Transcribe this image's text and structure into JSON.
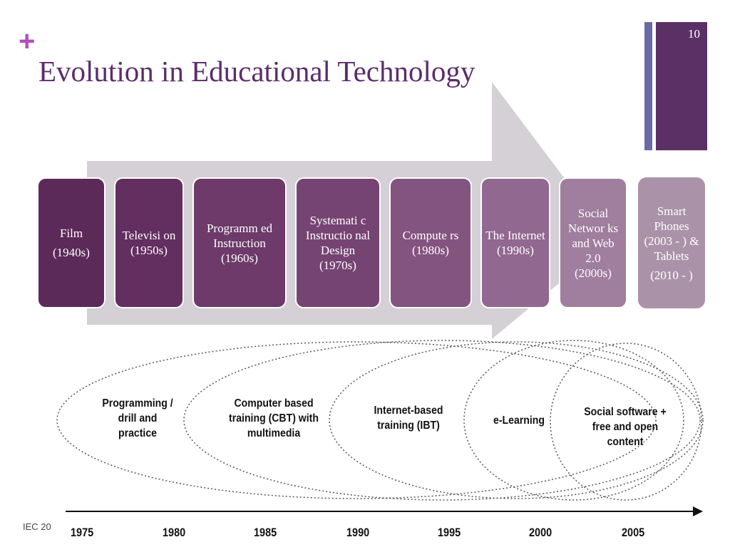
{
  "slide": {
    "plus": "+",
    "title": "Evolution in Educational Technology",
    "page_number": "10",
    "footer": "IEC 20"
  },
  "technologies": [
    {
      "name": "Film",
      "period": "(1940s)",
      "color": "#5c2a58"
    },
    {
      "name": "Televisi on",
      "period": "(1950s)",
      "color": "#632e60"
    },
    {
      "name": "Programm ed Instruction",
      "period": "(1960s)",
      "color": "#6d3a6a"
    },
    {
      "name": "Systemati c Instructio nal Design",
      "period": "(1970s)",
      "color": "#764473"
    },
    {
      "name": "Compute rs",
      "period": "(1980s)",
      "color": "#835480"
    },
    {
      "name": "The Internet",
      "period": "(1990s)",
      "color": "#916890"
    },
    {
      "name": "Social Networ ks and Web 2.0",
      "period": "(2000s)",
      "color": "#9f7e9e"
    },
    {
      "name": "Smart Phones (2003 - ) & Tablets",
      "period": "(2010 - )",
      "color": "#aa93a9"
    }
  ],
  "eras": [
    {
      "label": "Programming / drill and practice"
    },
    {
      "label": "Computer based training (CBT) with multimedia"
    },
    {
      "label": "Internet-based training (IBT)"
    },
    {
      "label": "e-Learning"
    },
    {
      "label": "Social software + free and open content"
    }
  ],
  "timeline_years": [
    "1975",
    "1980",
    "1985",
    "1990",
    "1995",
    "2000",
    "2005"
  ]
}
